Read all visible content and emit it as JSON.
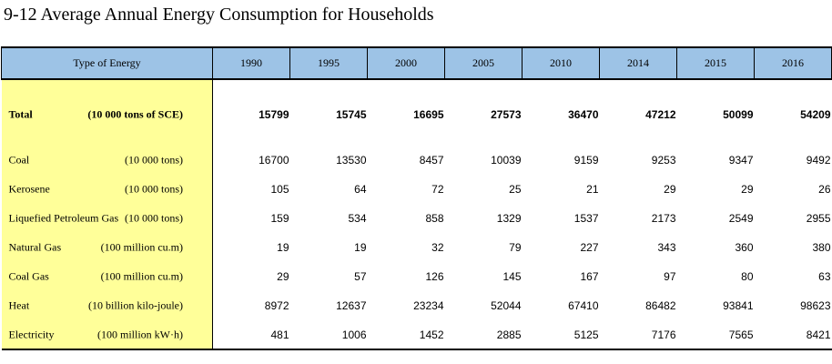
{
  "title": "9-12  Average Annual Energy Consumption for Households",
  "table": {
    "header_label": "Type of Energy",
    "years": [
      "1990",
      "1995",
      "2000",
      "2005",
      "2010",
      "2014",
      "2015",
      "2016"
    ],
    "rows": [
      {
        "name": "Total",
        "unit": "(10 000 tons of SCE)",
        "values": [
          "15799",
          "15745",
          "16695",
          "27573",
          "36470",
          "47212",
          "50099",
          "54209"
        ]
      },
      {
        "name": "Coal",
        "unit": "(10 000 tons)",
        "values": [
          "16700",
          "13530",
          "8457",
          "10039",
          "9159",
          "9253",
          "9347",
          "9492"
        ]
      },
      {
        "name": "Kerosene",
        "unit": "(10 000 tons)",
        "values": [
          "105",
          "64",
          "72",
          "25",
          "21",
          "29",
          "29",
          "26"
        ]
      },
      {
        "name": "Liquefied Petroleum Gas",
        "unit": "(10 000 tons)",
        "values": [
          "159",
          "534",
          "858",
          "1329",
          "1537",
          "2173",
          "2549",
          "2955"
        ]
      },
      {
        "name": "Natural Gas",
        "unit": "(100 million cu.m)",
        "values": [
          "19",
          "19",
          "32",
          "79",
          "227",
          "343",
          "360",
          "380"
        ]
      },
      {
        "name": "Coal Gas",
        "unit": "(100 million cu.m)",
        "values": [
          "29",
          "57",
          "126",
          "145",
          "167",
          "97",
          "80",
          "63"
        ]
      },
      {
        "name": "Heat",
        "unit": "(10 billion kilo-joule)",
        "values": [
          "8972",
          "12637",
          "23234",
          "52044",
          "67410",
          "86482",
          "93841",
          "98623"
        ]
      },
      {
        "name": "Electricity",
        "unit": "(100 million kW·h)",
        "values": [
          "481",
          "1006",
          "1452",
          "2885",
          "5125",
          "7176",
          "7565",
          "8421"
        ]
      }
    ]
  }
}
